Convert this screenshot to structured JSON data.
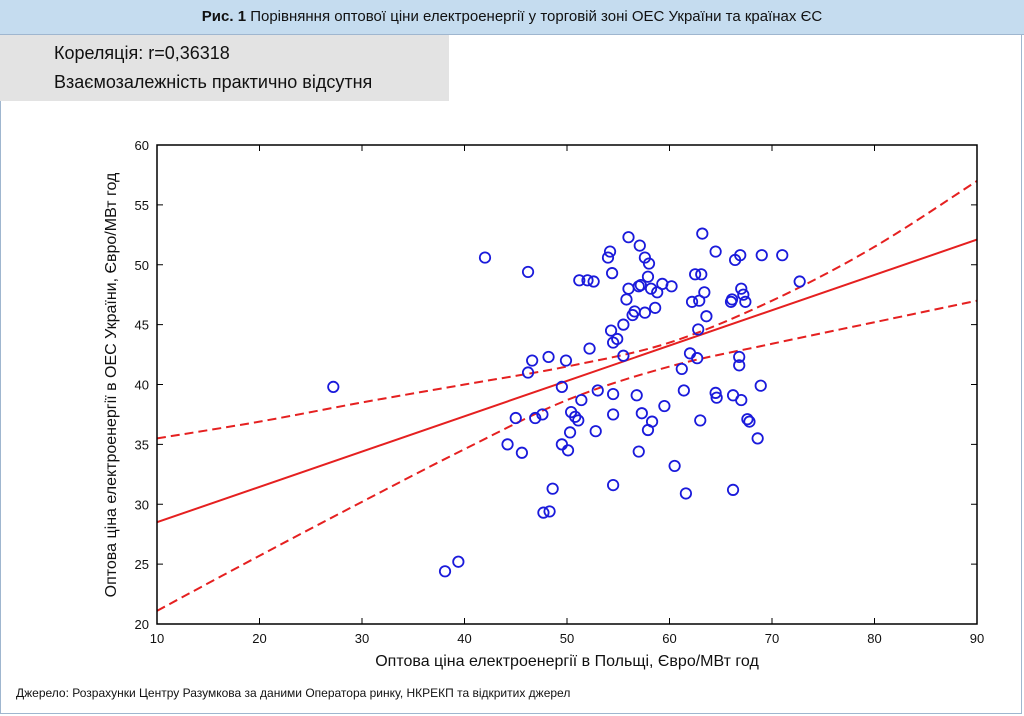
{
  "header": {
    "title_bold": "Рис. 1",
    "title_rest": " Порівняння оптової ціни електроенергії у торговій зоні ОЕС України та країнах ЄС"
  },
  "correlation": {
    "line1": "Кореляція: r=0,36318",
    "line2": "Взаємозалежність практично відсутня"
  },
  "source": "Джерело: Розрахунки Центру Разумкова за даними Оператора ринку, НКРЕКП та відкритих джерел",
  "chart_data": {
    "type": "scatter",
    "title": "",
    "xlabel": "Оптова ціна електроенергії в Польщі, Євро/МВт год",
    "ylabel": "Оптова ціна електроенергії в ОЕС України, Євро/МВт год",
    "xlim": [
      10,
      90
    ],
    "ylim": [
      20,
      60
    ],
    "xticks": [
      10,
      20,
      30,
      40,
      50,
      60,
      70,
      80,
      90
    ],
    "yticks": [
      20,
      25,
      30,
      35,
      40,
      45,
      50,
      55,
      60
    ],
    "grid": false,
    "colors": {
      "points": "#1a1adb",
      "fit": "#e52020",
      "frame": "#000000"
    },
    "regression": {
      "x": [
        10,
        90
      ],
      "y": [
        28.5,
        52.1
      ]
    },
    "confidence_upper": {
      "x": [
        10,
        20,
        30,
        40,
        50,
        60,
        70,
        80,
        90
      ],
      "y": [
        35.5,
        36.9,
        38.5,
        40.0,
        41.5,
        43.5,
        47.0,
        51.5,
        57.0
      ]
    },
    "confidence_lower": {
      "x": [
        10,
        20,
        30,
        40,
        50,
        60,
        70,
        80,
        90
      ],
      "y": [
        21.1,
        25.7,
        30.2,
        34.6,
        38.7,
        41.5,
        43.4,
        45.2,
        47.0
      ]
    },
    "points": [
      [
        27.2,
        39.8
      ],
      [
        38.1,
        24.4
      ],
      [
        39.4,
        25.2
      ],
      [
        42.0,
        50.6
      ],
      [
        46.2,
        49.4
      ],
      [
        44.2,
        35.0
      ],
      [
        45.0,
        37.2
      ],
      [
        45.6,
        34.3
      ],
      [
        46.2,
        41.0
      ],
      [
        46.6,
        42.0
      ],
      [
        46.9,
        37.2
      ],
      [
        47.6,
        37.5
      ],
      [
        47.7,
        29.3
      ],
      [
        48.2,
        42.3
      ],
      [
        48.3,
        29.4
      ],
      [
        48.6,
        31.3
      ],
      [
        49.5,
        39.8
      ],
      [
        49.5,
        35.0
      ],
      [
        49.9,
        42.0
      ],
      [
        50.1,
        34.5
      ],
      [
        50.3,
        36.0
      ],
      [
        50.4,
        37.7
      ],
      [
        50.8,
        37.3
      ],
      [
        51.1,
        37.0
      ],
      [
        51.2,
        48.7
      ],
      [
        51.4,
        38.7
      ],
      [
        52.0,
        48.7
      ],
      [
        52.2,
        43.0
      ],
      [
        52.6,
        48.6
      ],
      [
        52.8,
        36.1
      ],
      [
        53.0,
        39.5
      ],
      [
        54.0,
        50.6
      ],
      [
        54.2,
        51.1
      ],
      [
        54.3,
        44.5
      ],
      [
        54.4,
        49.3
      ],
      [
        54.5,
        43.5
      ],
      [
        54.5,
        39.2
      ],
      [
        54.5,
        37.5
      ],
      [
        54.5,
        31.6
      ],
      [
        54.9,
        43.8
      ],
      [
        55.5,
        45.0
      ],
      [
        55.5,
        42.4
      ],
      [
        55.8,
        47.1
      ],
      [
        56.0,
        52.3
      ],
      [
        56.0,
        48.0
      ],
      [
        56.4,
        45.8
      ],
      [
        56.6,
        46.1
      ],
      [
        56.8,
        39.1
      ],
      [
        57.0,
        48.2
      ],
      [
        57.0,
        34.4
      ],
      [
        57.1,
        51.6
      ],
      [
        57.2,
        48.3
      ],
      [
        57.3,
        37.6
      ],
      [
        57.6,
        46.0
      ],
      [
        57.6,
        50.6
      ],
      [
        57.9,
        49.0
      ],
      [
        57.9,
        36.2
      ],
      [
        58.0,
        50.1
      ],
      [
        58.2,
        48.0
      ],
      [
        58.3,
        36.9
      ],
      [
        58.6,
        46.4
      ],
      [
        58.8,
        47.7
      ],
      [
        59.3,
        48.4
      ],
      [
        59.5,
        38.2
      ],
      [
        60.2,
        48.2
      ],
      [
        60.5,
        33.2
      ],
      [
        61.2,
        41.3
      ],
      [
        61.4,
        39.5
      ],
      [
        61.6,
        30.9
      ],
      [
        62.0,
        42.6
      ],
      [
        62.2,
        46.9
      ],
      [
        62.5,
        49.2
      ],
      [
        62.7,
        42.2
      ],
      [
        62.8,
        44.6
      ],
      [
        62.9,
        47.0
      ],
      [
        63.0,
        37.0
      ],
      [
        63.1,
        49.2
      ],
      [
        63.2,
        52.6
      ],
      [
        63.4,
        47.7
      ],
      [
        63.6,
        45.7
      ],
      [
        64.5,
        51.1
      ],
      [
        64.5,
        39.3
      ],
      [
        64.6,
        38.9
      ],
      [
        66.0,
        46.9
      ],
      [
        66.1,
        47.1
      ],
      [
        66.2,
        39.1
      ],
      [
        66.2,
        31.2
      ],
      [
        66.4,
        50.4
      ],
      [
        66.8,
        42.3
      ],
      [
        66.8,
        41.6
      ],
      [
        66.9,
        50.8
      ],
      [
        67.0,
        48.0
      ],
      [
        67.0,
        38.7
      ],
      [
        67.2,
        47.5
      ],
      [
        67.4,
        46.9
      ],
      [
        67.6,
        37.1
      ],
      [
        67.8,
        36.9
      ],
      [
        68.6,
        35.5
      ],
      [
        68.9,
        39.9
      ],
      [
        69.0,
        50.8
      ],
      [
        71.0,
        50.8
      ],
      [
        72.7,
        48.6
      ]
    ]
  }
}
